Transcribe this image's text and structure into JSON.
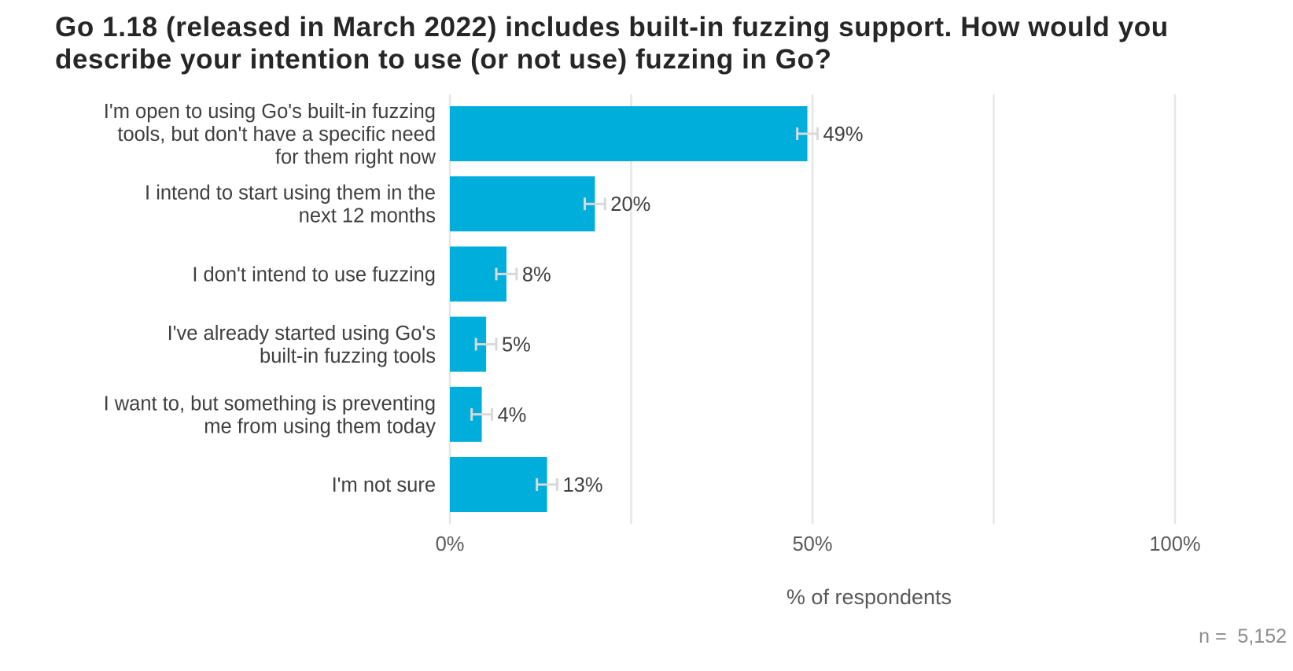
{
  "chart_data": {
    "type": "bar",
    "orientation": "horizontal",
    "title": "Go 1.18 (released in March 2022) includes built-in fuzzing support. How would you describe your intention to use (or not use) fuzzing in Go?",
    "categories": [
      [
        "I'm open to using Go's built-in fuzzing",
        "tools, but don't have a specific need",
        "for them right now"
      ],
      [
        "I intend to start using them in the",
        "next 12 months"
      ],
      [
        "I don't intend to use fuzzing"
      ],
      [
        "I've already started using Go's",
        "built-in fuzzing tools"
      ],
      [
        "I want to, but something is preventing",
        "me from using them today"
      ],
      [
        "I'm not sure"
      ]
    ],
    "values": [
      49.3,
      20,
      7.8,
      5,
      4.4,
      13.4
    ],
    "value_labels": [
      "49%",
      "20%",
      "8%",
      "5%",
      "4%",
      "13%"
    ],
    "error_margin": 1.4,
    "xlabel": "% of respondents",
    "ylabel": "",
    "xlim": [
      0,
      100
    ],
    "x_ticks": [
      0,
      50,
      100
    ],
    "x_tick_labels": [
      "0%",
      "50%",
      "100%"
    ],
    "x_gridlines": [
      0,
      25,
      50,
      75,
      100
    ],
    "grid": true,
    "note": "n =  5,152",
    "colors": {
      "bar": "#00aedb",
      "grid": "#e6e6e6",
      "error_bar": "#d9d9d9",
      "title": "#262626",
      "label": "#404040",
      "tick": "#595959",
      "note": "#8c8c8c"
    }
  }
}
